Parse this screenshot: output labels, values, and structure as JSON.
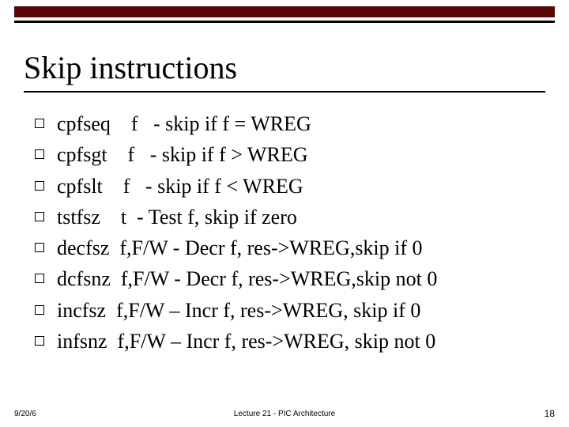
{
  "decor": {
    "bar_dark_color": "#5a0404",
    "bar_thin_color": "#000000"
  },
  "title": {
    "text": "Skip instructions",
    "fontsize": 40,
    "color": "#000000",
    "underline_color": "#000000"
  },
  "bullets": {
    "box_border_color": "#000000",
    "text_color": "#000000",
    "fontsize": 26,
    "items": [
      "cpfseq    f   - skip if f = WREG",
      "cpfsgt    f   - skip if f > WREG",
      "cpfslt    f   - skip if f < WREG",
      "tstfsz    t  - Test f, skip if zero",
      "decfsz  f,F/W - Decr f, res->WREG,skip if 0",
      "dcfsnz  f,F/W - Decr f, res->WREG,skip not 0",
      "incfsz  f,F/W – Incr f, res->WREG, skip if 0",
      "infsnz  f,F/W – Incr f, res->WREG, skip not 0"
    ]
  },
  "footer": {
    "date": "9/20/6",
    "center": "Lecture 21 - PIC Architecture",
    "page": "18",
    "fontsize_small": 10,
    "fontsize_page": 12,
    "color": "#000000"
  }
}
